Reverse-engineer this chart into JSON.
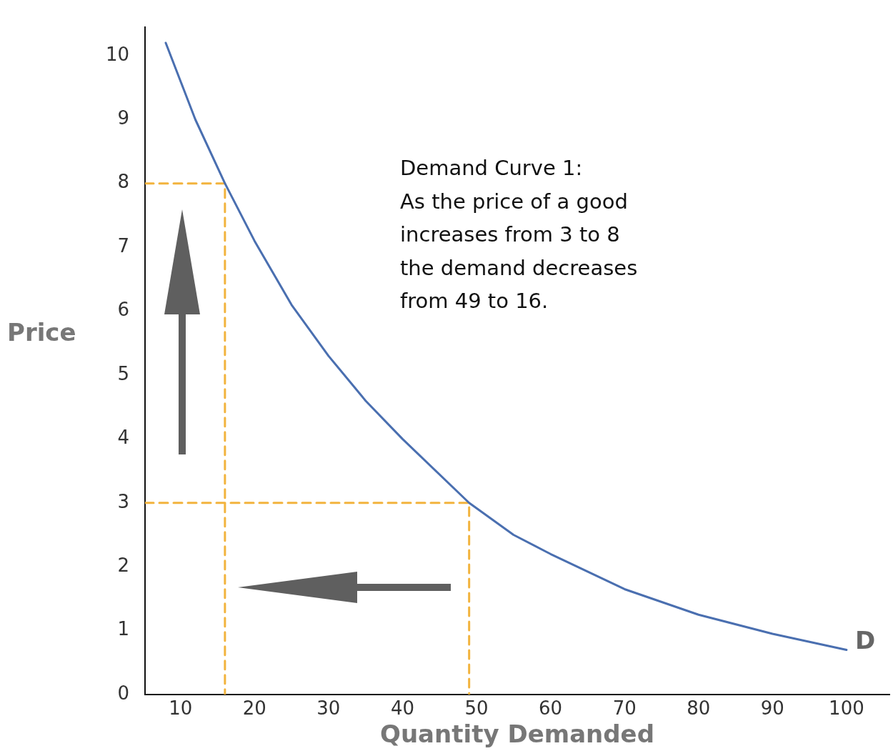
{
  "chart_data": {
    "type": "line",
    "xlabel": "Quantity Demanded",
    "ylabel": "Price",
    "xlim": [
      5.2,
      105.8
    ],
    "ylim": [
      0,
      10.45
    ],
    "xticks": [
      10,
      20,
      30,
      40,
      50,
      60,
      70,
      80,
      90,
      100
    ],
    "yticks": [
      0,
      1,
      2,
      3,
      4,
      5,
      6,
      7,
      8,
      9,
      10
    ],
    "grid": false,
    "legend": false,
    "marker": "none",
    "series": [
      {
        "name": "D",
        "color": "#4a6fb0",
        "x": [
          8,
          12,
          16,
          20,
          25,
          30,
          35,
          40,
          49,
          55,
          60,
          70,
          80,
          90,
          100
        ],
        "values": [
          10.2,
          9.0,
          8,
          7.1,
          6.1,
          5.3,
          4.6,
          4.0,
          3,
          2.5,
          2.2,
          1.65,
          1.25,
          0.95,
          0.7
        ]
      },
      {
        "color": "#f2b33d",
        "line_style": "dashed",
        "x": [
          5.2,
          16,
          16
        ],
        "values": [
          8,
          8,
          0
        ]
      },
      {
        "color": "#f2b33d",
        "line_style": "dashed",
        "x": [
          5.2,
          49,
          49
        ],
        "values": [
          3,
          3,
          0
        ]
      }
    ],
    "annotations": [
      "Demand Curve 1:\nAs the price of a good\nincreases from 3 to 8\nthe demand decreases\nfrom 49 to 16."
    ]
  }
}
